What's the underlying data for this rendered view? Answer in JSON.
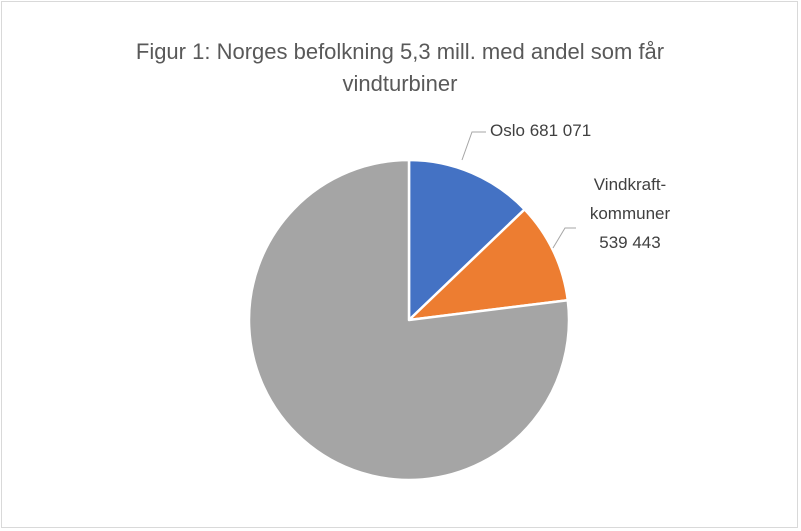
{
  "chart_data": {
    "type": "pie",
    "title": "Figur 1: Norges befolkning 5,3 mill. med andel som får vindturbiner",
    "categories": [
      "Oslo",
      "Vindkraft-kommuner",
      null
    ],
    "values": [
      681071,
      539443,
      4079486
    ],
    "value_labels": [
      "681 071",
      "539 443",
      null
    ],
    "colors": [
      "#4472c4",
      "#ed7d31",
      "#a5a5a5"
    ]
  }
}
